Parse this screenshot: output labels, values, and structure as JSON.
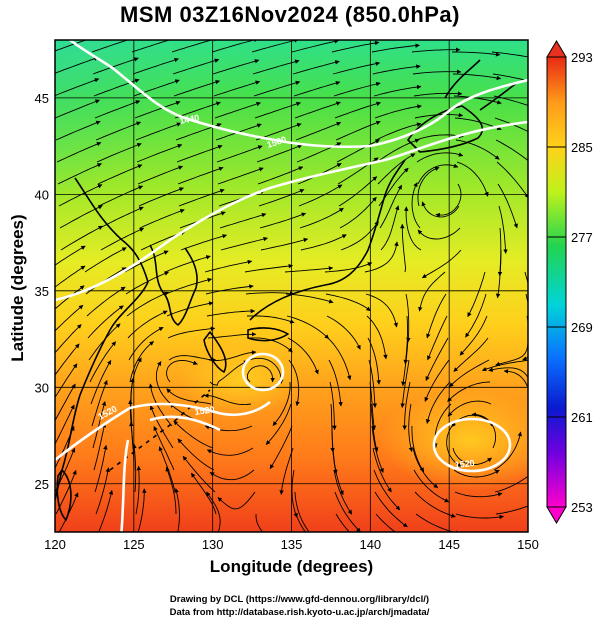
{
  "title": "MSM 03Z16Nov2024 (850.0hPa)",
  "xlabel": "Longitude (degrees)",
  "ylabel": "Latitude  (degrees)",
  "credits": [
    "Drawing by DCL (https://www.gfd-dennou.org/library/dcl/)",
    "Data from http://database.rish.kyoto-u.ac.jp/arch/jmadata/"
  ],
  "map": {
    "lon_range": [
      120,
      150
    ],
    "lat_range": [
      22.5,
      48
    ],
    "lon_ticks": [
      120,
      125,
      130,
      135,
      140,
      145,
      150
    ],
    "lat_ticks": [
      25,
      30,
      35,
      40,
      45
    ],
    "field": "temperature (K) with streamlines",
    "contour_labels": [
      "1440",
      "1500",
      "1520",
      "1520",
      "1520"
    ]
  },
  "colorbar": {
    "min": 253,
    "max": 293,
    "labels": [
      293,
      285,
      277,
      269,
      261,
      253
    ]
  }
}
